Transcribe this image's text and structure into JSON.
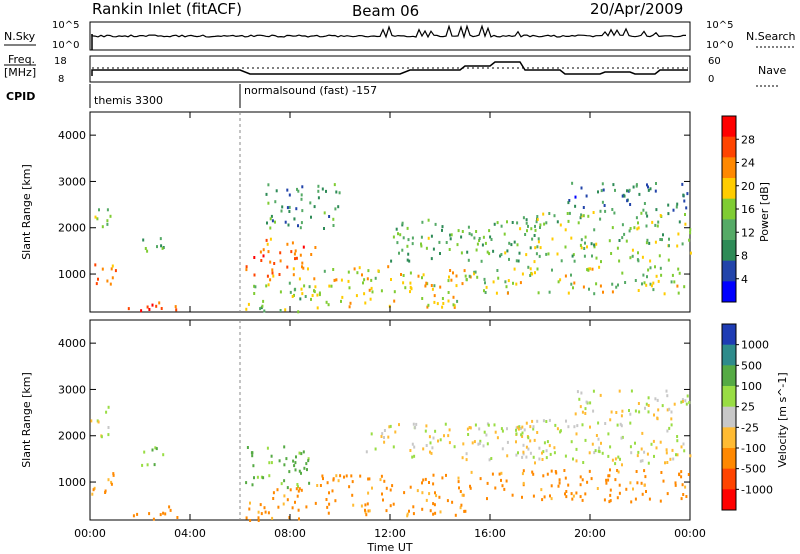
{
  "header": {
    "station": "Rankin Inlet (fitACF)",
    "beam": "Beam 06",
    "date": "20/Apr/2009"
  },
  "top_panels": {
    "nsky_label": "N.Sky",
    "nsky_ticks": [
      "10^5",
      "10^0"
    ],
    "nsearch_label": "N.Search",
    "nsearch_ticks": [
      "10^5",
      "10^0"
    ],
    "freq_label_line1": "Freq.",
    "freq_label_line2": "[MHz]",
    "freq_ticks": [
      "18",
      "8"
    ],
    "nave_label": "Nave",
    "nave_ticks": [
      "60",
      "0"
    ],
    "cpid_label": "CPID",
    "cpid_segments": [
      {
        "label": "themis 3300",
        "start_hour": 0
      },
      {
        "label": "normalsound (fast) -157",
        "start_hour": 6
      }
    ]
  },
  "colors": {
    "power_scale": [
      "#0000ff",
      "#2244aa",
      "#2e8b57",
      "#55aa66",
      "#7fcc33",
      "#ffcc00",
      "#ff8800",
      "#ff4400",
      "#ff0000"
    ],
    "velocity_scale": [
      "#ff0000",
      "#ff4400",
      "#ff8800",
      "#ffbb33",
      "#c8c8c8",
      "#99dd44",
      "#55aa44",
      "#2e8b8b",
      "#1e3cb4"
    ]
  },
  "chart_data": [
    {
      "type": "heatmap",
      "title": "Power",
      "xlabel": "",
      "ylabel": "Slant Range [km]",
      "x_ticks": [
        "00:00",
        "04:00",
        "08:00",
        "12:00",
        "16:00",
        "20:00",
        "00:00"
      ],
      "xlim": [
        0,
        24
      ],
      "y_ticks": [
        "1000",
        "2000",
        "3000",
        "4000"
      ],
      "ylim": [
        180,
        4500
      ],
      "colorbar_label": "Power [dB]",
      "colorbar_ticks": [
        "28",
        "24",
        "20",
        "16",
        "12",
        "8",
        "4"
      ],
      "colorbar_range": [
        0,
        30
      ],
      "scatter_regions": [
        {
          "x0": 0.0,
          "x1": 1.0,
          "y0": 700,
          "y1": 1300,
          "level": 22
        },
        {
          "x0": 0.0,
          "x1": 0.8,
          "y0": 2000,
          "y1": 2600,
          "level": 14
        },
        {
          "x0": 1.5,
          "x1": 3.5,
          "y0": 200,
          "y1": 500,
          "level": 26
        },
        {
          "x0": 2.0,
          "x1": 3.0,
          "y0": 1300,
          "y1": 1800,
          "level": 12
        },
        {
          "x0": 6.2,
          "x1": 9.0,
          "y0": 900,
          "y1": 1800,
          "level": 22
        },
        {
          "x0": 6.2,
          "x1": 9.0,
          "y0": 200,
          "y1": 900,
          "level": 14
        },
        {
          "x0": 7.0,
          "x1": 10.0,
          "y0": 2000,
          "y1": 3000,
          "level": 10
        },
        {
          "x0": 9.0,
          "x1": 15.0,
          "y0": 300,
          "y1": 1200,
          "level": 18
        },
        {
          "x0": 12.0,
          "x1": 18.0,
          "y0": 1300,
          "y1": 2200,
          "level": 12
        },
        {
          "x0": 15.0,
          "x1": 24.0,
          "y0": 600,
          "y1": 1200,
          "level": 16
        },
        {
          "x0": 17.0,
          "x1": 24.0,
          "y0": 1300,
          "y1": 2400,
          "level": 14
        },
        {
          "x0": 19.0,
          "x1": 24.0,
          "y0": 2400,
          "y1": 3000,
          "level": 8
        }
      ]
    },
    {
      "type": "heatmap",
      "title": "Velocity",
      "xlabel": "Time UT",
      "ylabel": "Slant Range [km]",
      "x_ticks": [
        "00:00",
        "04:00",
        "08:00",
        "12:00",
        "16:00",
        "20:00",
        "00:00"
      ],
      "xlim": [
        0,
        24
      ],
      "y_ticks": [
        "1000",
        "2000",
        "3000",
        "4000"
      ],
      "ylim": [
        180,
        4500
      ],
      "colorbar_label": "Velocity [m s^-1]",
      "colorbar_ticks": [
        "1000",
        "500",
        "100",
        "25",
        "-25",
        "-100",
        "-500",
        "-1000"
      ],
      "scatter_regions": [
        {
          "x0": 0.0,
          "x1": 1.0,
          "y0": 700,
          "y1": 1300,
          "level": -100
        },
        {
          "x0": 0.0,
          "x1": 0.8,
          "y0": 2000,
          "y1": 2700,
          "level": 0
        },
        {
          "x0": 1.5,
          "x1": 3.5,
          "y0": 200,
          "y1": 500,
          "level": -300
        },
        {
          "x0": 2.0,
          "x1": 3.0,
          "y0": 1300,
          "y1": 1800,
          "level": 100
        },
        {
          "x0": 6.2,
          "x1": 9.0,
          "y0": 900,
          "y1": 1800,
          "level": 150
        },
        {
          "x0": 6.2,
          "x1": 9.0,
          "y0": 200,
          "y1": 900,
          "level": -150
        },
        {
          "x0": 9.0,
          "x1": 15.0,
          "y0": 300,
          "y1": 1200,
          "level": -150
        },
        {
          "x0": 11.0,
          "x1": 18.0,
          "y0": 1500,
          "y1": 2300,
          "level": 0
        },
        {
          "x0": 15.0,
          "x1": 24.0,
          "y0": 600,
          "y1": 1300,
          "level": -150
        },
        {
          "x0": 17.0,
          "x1": 24.0,
          "y0": 1400,
          "y1": 2400,
          "level": 0
        },
        {
          "x0": 19.0,
          "x1": 24.0,
          "y0": 2400,
          "y1": 3000,
          "level": 0
        }
      ]
    }
  ]
}
